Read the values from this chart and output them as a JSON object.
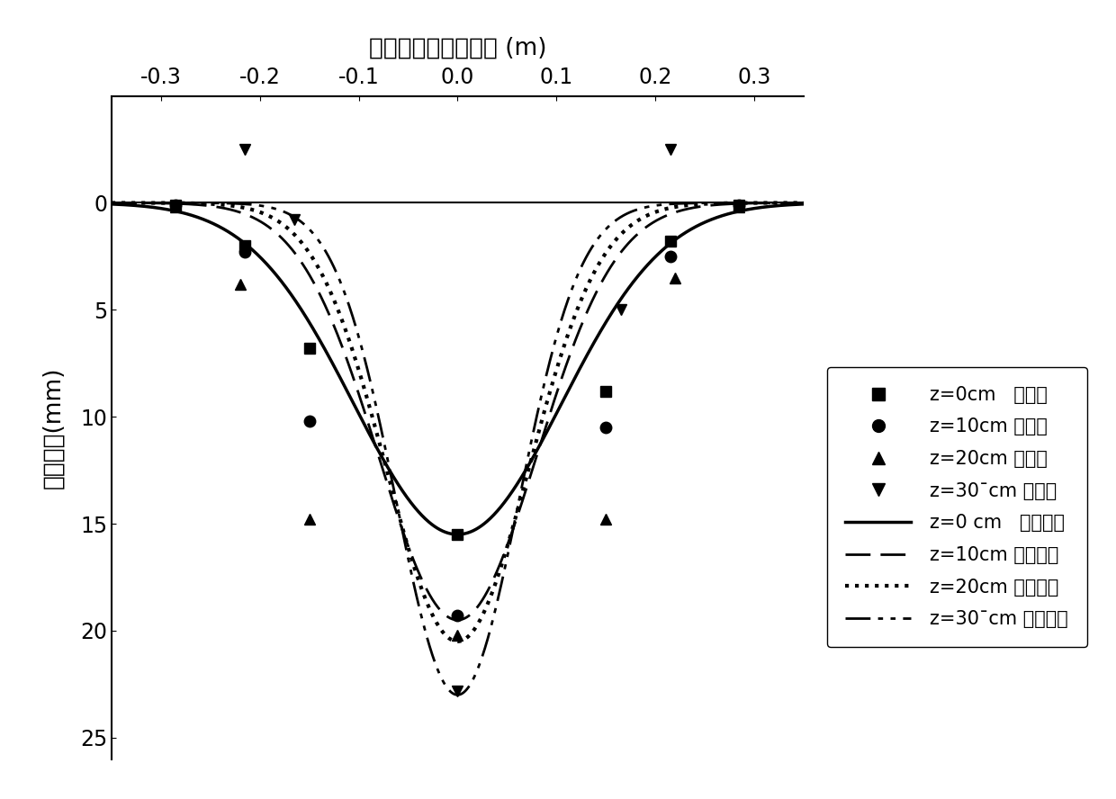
{
  "title_top": "测点距隧道轴线距离 (m)",
  "ylabel": "地层位移(mm)",
  "xlim": [
    -0.35,
    0.35
  ],
  "ylim": [
    26,
    -5
  ],
  "xticks": [
    -0.3,
    -0.2,
    -0.1,
    0.0,
    0.1,
    0.2,
    0.3
  ],
  "yticks": [
    0,
    5,
    10,
    15,
    20,
    25
  ],
  "scatter_z0": [
    [
      -0.285,
      0.1
    ],
    [
      -0.215,
      2.0
    ],
    [
      -0.15,
      6.8
    ],
    [
      0.0,
      15.5
    ],
    [
      0.15,
      8.8
    ],
    [
      0.215,
      1.8
    ],
    [
      0.285,
      0.1
    ]
  ],
  "scatter_z10": [
    [
      -0.285,
      0.1
    ],
    [
      -0.215,
      2.3
    ],
    [
      -0.15,
      10.2
    ],
    [
      0.0,
      19.3
    ],
    [
      0.15,
      10.5
    ],
    [
      0.215,
      2.5
    ],
    [
      0.285,
      0.1
    ]
  ],
  "scatter_z20": [
    [
      -0.285,
      0.2
    ],
    [
      -0.22,
      3.8
    ],
    [
      -0.15,
      14.8
    ],
    [
      0.0,
      20.2
    ],
    [
      0.15,
      14.8
    ],
    [
      0.22,
      3.5
    ],
    [
      0.285,
      0.2
    ]
  ],
  "scatter_z30": [
    [
      -0.215,
      -2.5
    ],
    [
      -0.165,
      0.8
    ],
    [
      0.0,
      22.8
    ],
    [
      0.165,
      5.0
    ],
    [
      0.215,
      -2.5
    ]
  ],
  "curve_z0_params": {
    "A": 15.5,
    "sigma": 0.105
  },
  "curve_z10_params": {
    "A": 19.5,
    "sigma": 0.08
  },
  "curve_z20_params": {
    "A": 20.5,
    "sigma": 0.072
  },
  "curve_z30_params": {
    "A": 23.0,
    "sigma": 0.062
  },
  "legend_labels": [
    "z=0cm   实测值",
    "z=10cm 实测值",
    "z=20cm 实测值",
    "z=30¯cm 实测值",
    "z=0 cm   拟合曲线",
    "z=10cm 拟合曲线",
    "z=20cm 拟合曲线",
    "z=30¯cm 拟合曲线"
  ]
}
